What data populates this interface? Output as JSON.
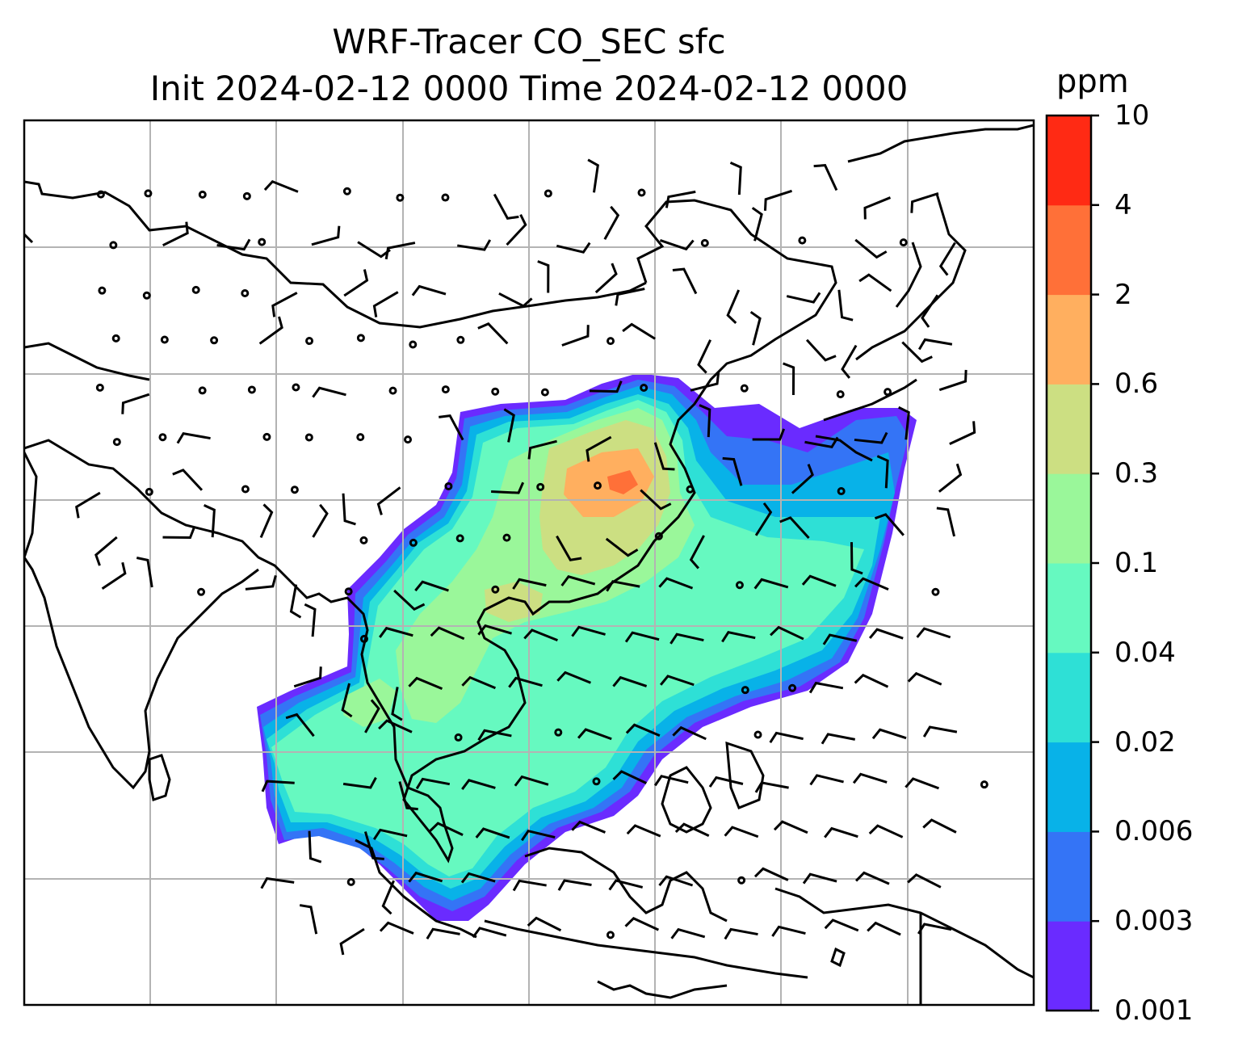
{
  "title": {
    "line1": "WRF-Tracer CO_SEC sfc",
    "line2": "Init 2024-02-12 0000 Time 2024-02-12 0000"
  },
  "colorbar": {
    "unit": "ppm",
    "levels": [
      "0.001",
      "0.003",
      "0.006",
      "0.02",
      "0.04",
      "0.1",
      "0.3",
      "0.6",
      "2",
      "4",
      "10"
    ],
    "colors": [
      "#6a2bff",
      "#3474f6",
      "#08b2e8",
      "#2ee0d6",
      "#66f9c0",
      "#9af79a",
      "#ccdf82",
      "#ffaf5f",
      "#ff7038",
      "#ff2a14"
    ]
  }
}
